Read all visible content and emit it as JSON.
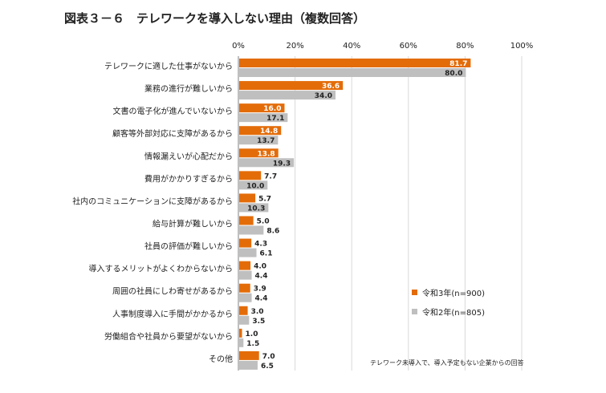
{
  "chart_data": {
    "type": "bar",
    "orientation": "horizontal",
    "title": "図表３－６　テレワークを導入しない理由（複数回答）",
    "categories": [
      "テレワークに適した仕事がないから",
      "業務の進行が難しいから",
      "文書の電子化が進んでいないから",
      "顧客等外部対応に支障があるから",
      "情報漏えいが心配だから",
      "費用がかかりすぎるから",
      "社内のコミュニケーションに支障があるから",
      "給与計算が難しいから",
      "社員の評価が難しいから",
      "導入するメリットがよくわからないから",
      "周囲の社員にしわ寄せがあるから",
      "人事制度導入に手間がかかるから",
      "労働組合や社員から要望がないから",
      "その他"
    ],
    "series": [
      {
        "name": "令和3年(n=900)",
        "color": "#e36c09",
        "values": [
          81.7,
          36.6,
          16.0,
          14.8,
          13.8,
          7.7,
          5.7,
          5.0,
          4.3,
          4.0,
          3.9,
          3.0,
          1.0,
          7.0
        ]
      },
      {
        "name": "令和2年(n=805)",
        "color": "#bfbfbf",
        "values": [
          80.0,
          34.0,
          17.1,
          13.7,
          19.3,
          10.0,
          10.3,
          8.6,
          6.1,
          4.4,
          4.4,
          3.5,
          1.5,
          6.5
        ]
      }
    ],
    "xlim": [
      0,
      100
    ],
    "xticks": [
      "0%",
      "20%",
      "40%",
      "60%",
      "80%",
      "100%"
    ],
    "grid": true,
    "legend_position": "bottom-right",
    "note": "テレワーク未導入で、導入予定もない企業からの回答"
  }
}
